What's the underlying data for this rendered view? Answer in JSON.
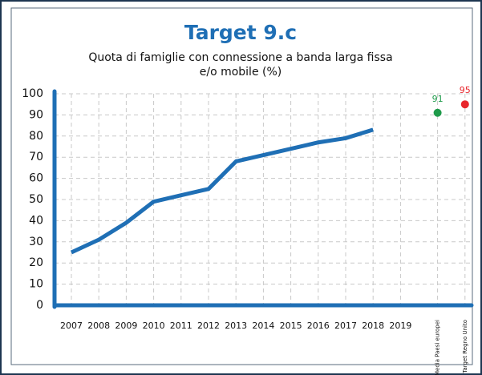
{
  "chart_data": {
    "type": "line",
    "title": "Target 9.c",
    "subtitle": [
      "Quota di famiglie con connessione a banda larga fissa",
      "e/o mobile (%)"
    ],
    "categories": [
      "2007",
      "2008",
      "2009",
      "2010",
      "2011",
      "2012",
      "2013",
      "2014",
      "2015",
      "2016",
      "2017",
      "2018",
      "2019",
      "Media Paesi europei",
      "Target Regno Unito"
    ],
    "series": [
      {
        "type": "line",
        "color": "#1f6fb5",
        "values": [
          25,
          31,
          39,
          49,
          52,
          55,
          68,
          71,
          74,
          77,
          79,
          83,
          null,
          null,
          null
        ]
      },
      {
        "type": "scatter",
        "color": "#1e9a4a",
        "values": [
          null,
          null,
          null,
          null,
          null,
          null,
          null,
          null,
          null,
          null,
          null,
          null,
          null,
          91,
          null
        ]
      },
      {
        "type": "scatter",
        "color": "#e8262c",
        "values": [
          null,
          null,
          null,
          null,
          null,
          null,
          null,
          null,
          null,
          null,
          null,
          null,
          null,
          null,
          95
        ]
      }
    ],
    "ylim": [
      0,
      100
    ],
    "yticks": [
      0,
      10,
      20,
      30,
      40,
      50,
      60,
      70,
      80,
      90,
      100
    ],
    "grid": true
  }
}
